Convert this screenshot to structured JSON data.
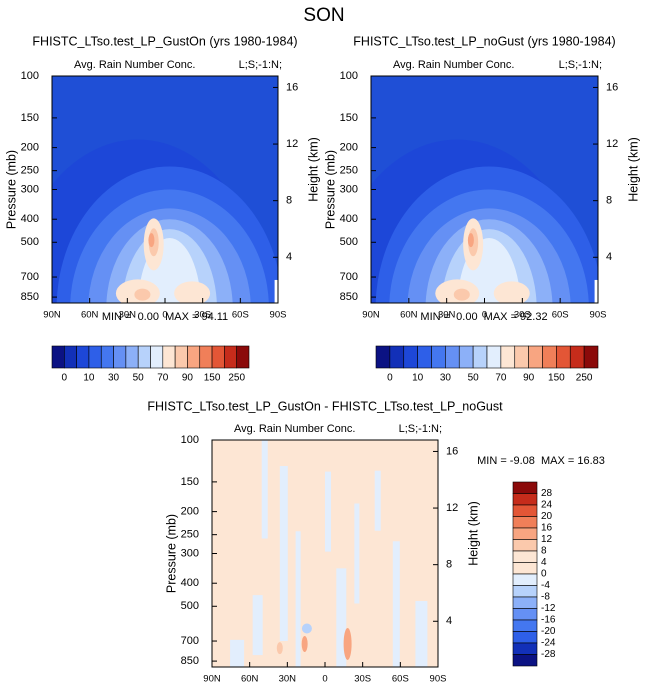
{
  "title": "SON",
  "panels": [
    {
      "title": "FHISTC_LTso.test_LP_GustOn (yrs 1980-1984)",
      "left_string": "Avg. Rain Number Conc.",
      "right_string": "L;S;-1:N;",
      "y_label": "Pressure (mb)",
      "y2_label": "Height (km)",
      "ylim": [
        100,
        900
      ],
      "yticks": [
        100,
        150,
        200,
        250,
        300,
        400,
        500,
        700,
        850
      ],
      "height_ticks": [
        4,
        8,
        12,
        16
      ],
      "xticks": [
        "90N",
        "60N",
        "30N",
        "0",
        "30S",
        "60S",
        "90S"
      ],
      "stats": "MIN =  0.00  MAX = 94.11"
    },
    {
      "title": "FHISTC_LTso.test_LP_noGust (yrs 1980-1984)",
      "left_string": "Avg. Rain Number Conc.",
      "right_string": "L;S;-1:N;",
      "y_label": "Pressure (mb)",
      "y2_label": "Height (km)",
      "ylim": [
        100,
        900
      ],
      "yticks": [
        100,
        150,
        200,
        250,
        300,
        400,
        500,
        700,
        850
      ],
      "height_ticks": [
        4,
        8,
        12,
        16
      ],
      "xticks": [
        "90N",
        "60N",
        "30N",
        "0",
        "30S",
        "60S",
        "90S"
      ],
      "stats": "MIN =  0.00  MAX = 92.32"
    },
    {
      "title": "FHISTC_LTso.test_LP_GustOn - FHISTC_LTso.test_LP_noGust",
      "left_string": "Avg. Rain Number Conc.",
      "right_string": "L;S;-1:N;",
      "y_label": "Pressure (mb)",
      "y2_label": "Height (km)",
      "ylim": [
        100,
        900
      ],
      "yticks": [
        100,
        150,
        200,
        250,
        300,
        400,
        500,
        700,
        850
      ],
      "height_ticks": [
        4,
        8,
        12,
        16
      ],
      "xticks": [
        "90N",
        "60N",
        "30N",
        "0",
        "30S",
        "60S",
        "90S"
      ],
      "stats": "MIN = -9.08  MAX = 16.83"
    }
  ],
  "colorbars": [
    {
      "labels": [
        0,
        10,
        30,
        50,
        70,
        90,
        150,
        250
      ],
      "colors": [
        "#0b1283",
        "#1230b8",
        "#1d47d8",
        "#2e5fe8",
        "#4477f0",
        "#6590f4",
        "#8cb0f8",
        "#b7d2fb",
        "#e2eefd",
        "#fde6d4",
        "#fbc9ac",
        "#f8a581",
        "#f07f59",
        "#e35636",
        "#c62c1b",
        "#8b0a0a"
      ]
    },
    {
      "labels": [
        0,
        10,
        30,
        50,
        70,
        90,
        150,
        250
      ],
      "colors": [
        "#0b1283",
        "#1230b8",
        "#1d47d8",
        "#2e5fe8",
        "#4477f0",
        "#6590f4",
        "#8cb0f8",
        "#b7d2fb",
        "#e2eefd",
        "#fde6d4",
        "#fbc9ac",
        "#f8a581",
        "#f07f59",
        "#e35636",
        "#c62c1b",
        "#8b0a0a"
      ]
    },
    {
      "labels": [
        28,
        24,
        20,
        16,
        12,
        8,
        4,
        0,
        -4,
        -8,
        -12,
        -16,
        -20,
        -24,
        -28
      ],
      "colors": [
        "#8b0a0a",
        "#c62c1b",
        "#e35636",
        "#f07f59",
        "#f8a581",
        "#fbc9ac",
        "#fde6d4",
        "#fde6d4",
        "#e2eefd",
        "#b7d2fb",
        "#8cb0f8",
        "#6590f4",
        "#4477f0",
        "#2e5fe8",
        "#1230b8",
        "#0b1283"
      ]
    }
  ]
}
